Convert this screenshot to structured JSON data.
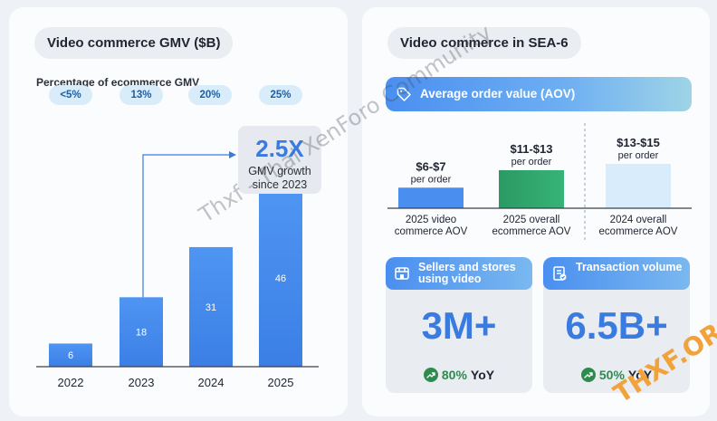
{
  "left_panel": {
    "title": "Video commerce GMV ($B)",
    "pct_heading": "Percentage of ecommerce GMV",
    "pct_badges": [
      "<5%",
      "13%",
      "20%",
      "25%"
    ],
    "growth": {
      "value": "2.5X",
      "label": "GMV growth since 2023"
    }
  },
  "right_panel": {
    "title": "Video commerce in SEA-6",
    "aov_banner": "Average order value (AOV)",
    "sellers": {
      "title": "Sellers and stores using video",
      "value": "3M+",
      "yoy_pct": "80%",
      "yoy_label": "YoY"
    },
    "transactions": {
      "title": "Transaction volume",
      "value": "6.5B+",
      "yoy_pct": "50%",
      "yoy_label": "YoY"
    }
  },
  "watermark": "Thxf - Thai XenForo Community",
  "corner_logo": "THXF.ORG",
  "colors": {
    "accent": "#3a7be0",
    "bar_blue": "#4a8ff0",
    "bar_green": "#2fa86a",
    "bar_pale": "#d8ecfb",
    "pct_badge": "#d9ecfa",
    "yoy_green": "#2e8b4e"
  },
  "chart_data": [
    {
      "type": "bar",
      "title": "Video commerce GMV ($B)",
      "categories": [
        "2022",
        "2023",
        "2024",
        "2025"
      ],
      "values": [
        6,
        18,
        31,
        46
      ],
      "value_labels": [
        "6",
        "18",
        "31",
        "46"
      ],
      "ylim": [
        0,
        50
      ],
      "grid": false
    },
    {
      "type": "bar",
      "title": "Average order value (AOV)",
      "categories": [
        "2025 video commerce AOV",
        "2025 overall ecommerce AOV",
        "2024 overall ecommerce AOV"
      ],
      "category_lines": [
        [
          "2025 video",
          "commerce AOV"
        ],
        [
          "2025 overall",
          "ecommerce AOV"
        ],
        [
          "2024 overall",
          "ecommerce AOV"
        ]
      ],
      "values": [
        6.5,
        12,
        14
      ],
      "value_labels": [
        "$6-$7",
        "$11-$13",
        "$13-$15"
      ],
      "sub_label": "per order",
      "ylim": [
        0,
        20
      ],
      "grid": false
    }
  ]
}
